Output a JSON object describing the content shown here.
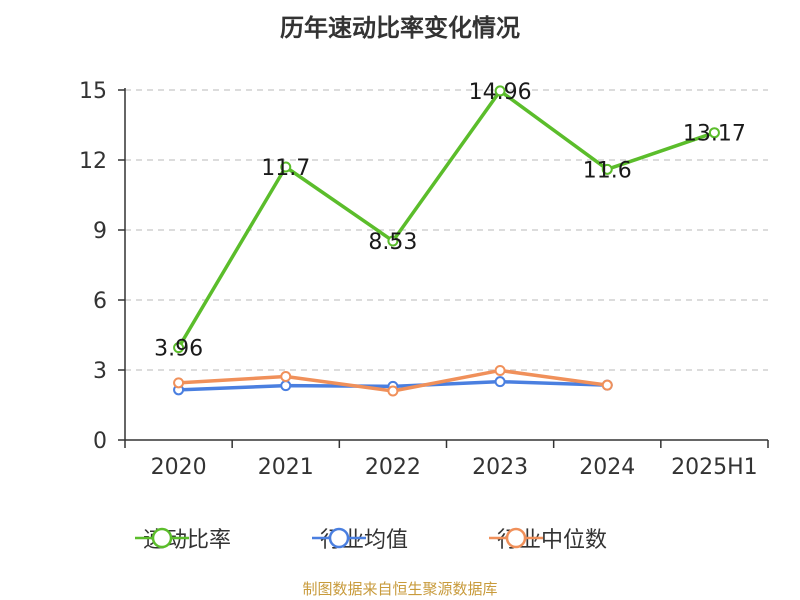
{
  "title": "历年速动比率变化情况",
  "footer": "制图数据来自恒生聚源数据库",
  "legend": [
    {
      "label": "速动比率",
      "color": "#5bbd2b"
    },
    {
      "label": "行业均值",
      "color": "#4a7fe0"
    },
    {
      "label": "行业中位数",
      "color": "#f0905a"
    }
  ],
  "chart_data": {
    "type": "line",
    "categories": [
      "2020",
      "2021",
      "2022",
      "2023",
      "2024",
      "2025H1"
    ],
    "ylim": [
      0,
      15
    ],
    "yticks": [
      0,
      3,
      6,
      9,
      12,
      15
    ],
    "grid": true,
    "legend_position": "bottom",
    "series": [
      {
        "name": "速动比率",
        "color": "#5bbd2b",
        "values": [
          3.96,
          11.7,
          8.53,
          14.96,
          11.6,
          13.17
        ],
        "labels": [
          "3.96",
          "11.7",
          "8.53",
          "14.96",
          "11.6",
          "13.17"
        ],
        "show_labels": true
      },
      {
        "name": "行业均值",
        "color": "#4a7fe0",
        "values": [
          2.15,
          2.33,
          2.3,
          2.5,
          2.35,
          null
        ],
        "show_labels": false
      },
      {
        "name": "行业中位数",
        "color": "#f0905a",
        "values": [
          2.45,
          2.72,
          2.1,
          2.98,
          2.35,
          null
        ],
        "show_labels": false
      }
    ]
  }
}
